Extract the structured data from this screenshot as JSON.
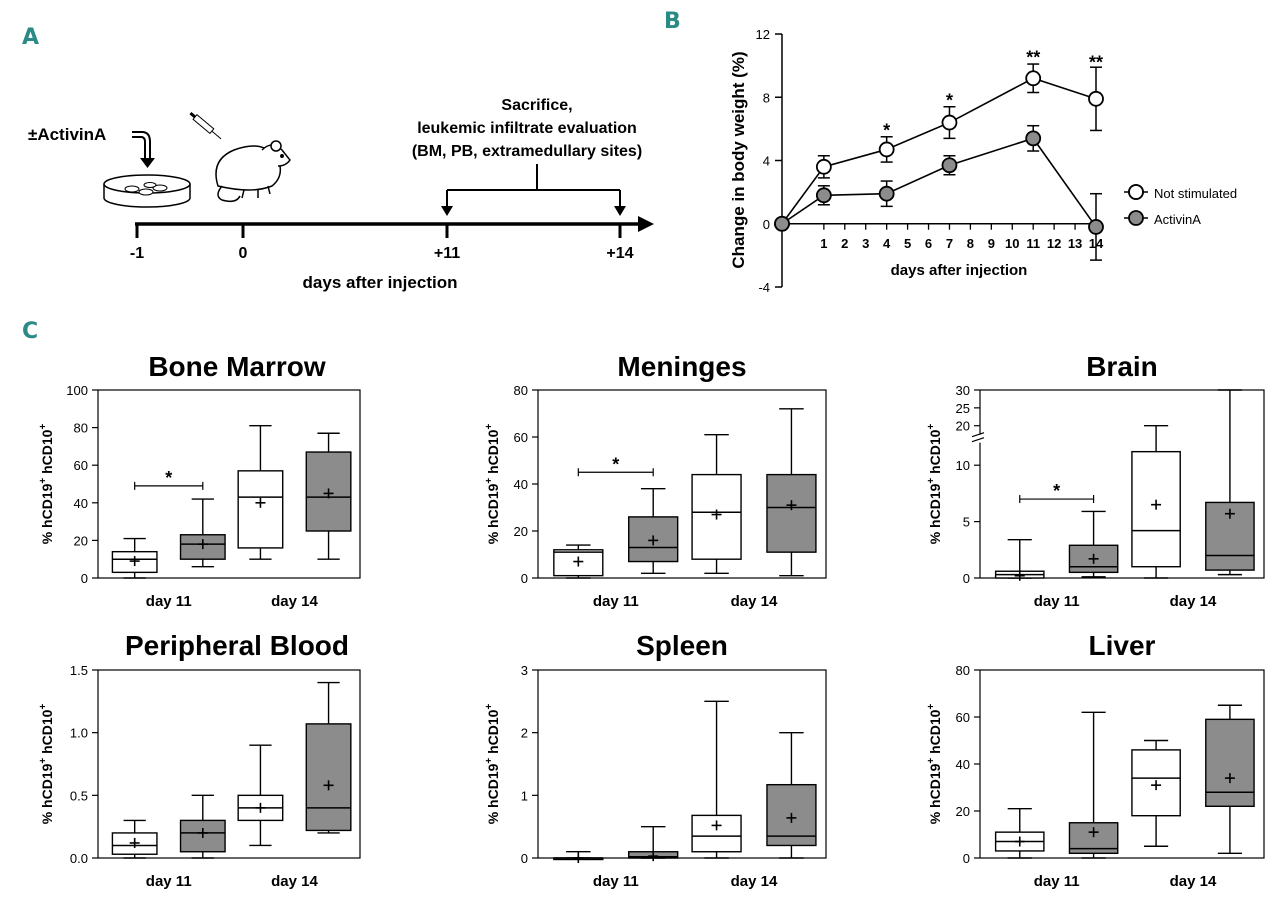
{
  "colors": {
    "panel_letter": "#2a8a86",
    "filled": "#8c8c8c",
    "open": "#ffffff",
    "stroke": "#000000"
  },
  "panelA": {
    "letter": "A",
    "activin_label": "±ActivinA",
    "sacrifice_lines": [
      "Sacrifice,",
      "leukemic infiltrate evaluation",
      "(BM, PB, extramedullary sites)"
    ],
    "timepoints": [
      "-1",
      "0",
      "+11",
      "+14"
    ],
    "axis_label": "days after injection",
    "icons": [
      "culture-dish-icon",
      "mouse-icon",
      "syringe-icon"
    ]
  },
  "panelB": {
    "letter": "B",
    "legend": [
      "Not stimulated",
      "ActivinA"
    ]
  },
  "panelC": {
    "letter": "C"
  },
  "chart_data": [
    {
      "id": "weight",
      "type": "line",
      "title": "",
      "xlabel": "days after injection",
      "ylabel": "Change in body weight (%)",
      "x_ticks": [
        "1",
        "2",
        "3",
        "4",
        "5",
        "6",
        "7",
        "8",
        "9",
        "10",
        "11",
        "12",
        "13",
        "14"
      ],
      "xlim": [
        -1,
        14
      ],
      "ylim": [
        -4,
        12
      ],
      "y_ticks": [
        "-4",
        "0",
        "4",
        "8",
        "12"
      ],
      "series": [
        {
          "name": "Not stimulated",
          "style": "open",
          "x": [
            -1,
            1,
            4,
            7,
            11,
            14
          ],
          "y": [
            0,
            3.6,
            4.7,
            6.4,
            9.2,
            7.9
          ],
          "err": [
            0,
            0.7,
            0.8,
            1.0,
            0.9,
            2.0
          ]
        },
        {
          "name": "ActivinA",
          "style": "filled",
          "x": [
            -1,
            1,
            4,
            7,
            11,
            14
          ],
          "y": [
            0,
            1.8,
            1.9,
            3.7,
            5.4,
            -0.2
          ],
          "err": [
            0,
            0.6,
            0.8,
            0.6,
            0.8,
            2.1
          ]
        }
      ],
      "annotations": [
        {
          "x": 4,
          "y": 5.9,
          "text": "*"
        },
        {
          "x": 7,
          "y": 7.8,
          "text": "*"
        },
        {
          "x": 11,
          "y": 10.5,
          "text": "**"
        },
        {
          "x": 14,
          "y": 10.2,
          "text": "**"
        }
      ]
    },
    {
      "id": "bone-marrow",
      "type": "box",
      "title": "Bone Marrow",
      "ylabel": "% hCD19+ hCD10+",
      "categories": [
        "day 11",
        "day 14"
      ],
      "ylim": [
        0,
        100
      ],
      "y_ticks": [
        "0",
        "20",
        "40",
        "60",
        "80",
        "100"
      ],
      "boxes": [
        {
          "style": "open",
          "whisker_low": 0,
          "q1": 3,
          "median": 10,
          "q3": 14,
          "whisker_high": 21,
          "mean": 9
        },
        {
          "style": "filled",
          "whisker_low": 6,
          "q1": 10,
          "median": 18,
          "q3": 23,
          "whisker_high": 42,
          "mean": 18
        },
        {
          "style": "open",
          "whisker_low": 10,
          "q1": 16,
          "median": 43,
          "q3": 57,
          "whisker_high": 81,
          "mean": 40
        },
        {
          "style": "filled",
          "whisker_low": 10,
          "q1": 25,
          "median": 43,
          "q3": 67,
          "whisker_high": 77,
          "mean": 45
        }
      ],
      "significance": {
        "from": 0,
        "to": 1,
        "y": 49,
        "text": "*"
      }
    },
    {
      "id": "meninges",
      "type": "box",
      "title": "Meninges",
      "ylabel": "% hCD19+ hCD10+",
      "categories": [
        "day 11",
        "day 14"
      ],
      "ylim": [
        0,
        80
      ],
      "y_ticks": [
        "0",
        "20",
        "40",
        "60",
        "80"
      ],
      "boxes": [
        {
          "style": "open",
          "whisker_low": 0,
          "q1": 1,
          "median": 11,
          "q3": 12,
          "whisker_high": 14,
          "mean": 7
        },
        {
          "style": "filled",
          "whisker_low": 2,
          "q1": 7,
          "median": 13,
          "q3": 26,
          "whisker_high": 38,
          "mean": 16
        },
        {
          "style": "open",
          "whisker_low": 2,
          "q1": 8,
          "median": 28,
          "q3": 44,
          "whisker_high": 61,
          "mean": 27
        },
        {
          "style": "filled",
          "whisker_low": 1,
          "q1": 11,
          "median": 30,
          "q3": 44,
          "whisker_high": 72,
          "mean": 31
        }
      ],
      "significance": {
        "from": 0,
        "to": 1,
        "y": 45,
        "text": "*"
      }
    },
    {
      "id": "brain",
      "type": "box",
      "title": "Brain",
      "ylabel": "% hCD19+ hCD10+",
      "categories": [
        "day 11",
        "day 14"
      ],
      "ylim": [
        0,
        30
      ],
      "axis_break": [
        12,
        17.5
      ],
      "y_ticks": [
        "0",
        "5",
        "10",
        "20",
        "25",
        "30"
      ],
      "boxes": [
        {
          "style": "open",
          "whisker_low": 0,
          "q1": 0,
          "median": 0.3,
          "q3": 0.6,
          "whisker_high": 3.4,
          "mean": 0.2
        },
        {
          "style": "filled",
          "whisker_low": 0.1,
          "q1": 0.5,
          "median": 1.0,
          "q3": 2.9,
          "whisker_high": 5.9,
          "mean": 1.7
        },
        {
          "style": "open",
          "whisker_low": 0,
          "q1": 1.0,
          "median": 4.2,
          "q3": 11.2,
          "whisker_high": 20,
          "mean": 6.5
        },
        {
          "style": "filled",
          "whisker_low": 0.3,
          "q1": 0.7,
          "median": 2.0,
          "q3": 6.7,
          "whisker_high": 30,
          "mean": 5.7
        }
      ],
      "significance": {
        "from": 0,
        "to": 1,
        "y": 7,
        "text": "*"
      }
    },
    {
      "id": "peripheral-blood",
      "type": "box",
      "title": "Peripheral Blood",
      "ylabel": "% hCD19+ hCD10+",
      "categories": [
        "day 11",
        "day 14"
      ],
      "ylim": [
        0,
        1.5
      ],
      "y_ticks": [
        "0.0",
        "0.5",
        "1.0",
        "1.5"
      ],
      "boxes": [
        {
          "style": "open",
          "whisker_low": 0,
          "q1": 0.03,
          "median": 0.1,
          "q3": 0.2,
          "whisker_high": 0.3,
          "mean": 0.12
        },
        {
          "style": "filled",
          "whisker_low": 0,
          "q1": 0.05,
          "median": 0.2,
          "q3": 0.3,
          "whisker_high": 0.5,
          "mean": 0.2
        },
        {
          "style": "open",
          "whisker_low": 0.1,
          "q1": 0.3,
          "median": 0.4,
          "q3": 0.5,
          "whisker_high": 0.9,
          "mean": 0.4
        },
        {
          "style": "filled",
          "whisker_low": 0.2,
          "q1": 0.22,
          "median": 0.4,
          "q3": 1.07,
          "whisker_high": 1.4,
          "mean": 0.58
        }
      ]
    },
    {
      "id": "spleen",
      "type": "box",
      "title": "Spleen",
      "ylabel": "% hCD19+ hCD10+",
      "categories": [
        "day 11",
        "day 14"
      ],
      "ylim": [
        0,
        3
      ],
      "y_ticks": [
        "0",
        "1",
        "2",
        "3"
      ],
      "boxes": [
        {
          "style": "open",
          "whisker_low": 0,
          "q1": 0,
          "median": 0,
          "q3": 0,
          "whisker_high": 0.1,
          "mean": 0
        },
        {
          "style": "filled",
          "whisker_low": 0,
          "q1": 0,
          "median": 0.02,
          "q3": 0.1,
          "whisker_high": 0.5,
          "mean": 0.03
        },
        {
          "style": "open",
          "whisker_low": 0,
          "q1": 0.1,
          "median": 0.35,
          "q3": 0.68,
          "whisker_high": 2.5,
          "mean": 0.52
        },
        {
          "style": "filled",
          "whisker_low": 0,
          "q1": 0.2,
          "median": 0.35,
          "q3": 1.17,
          "whisker_high": 2.0,
          "mean": 0.64
        }
      ]
    },
    {
      "id": "liver",
      "type": "box",
      "title": "Liver",
      "ylabel": "% hCD19+ hCD10+",
      "categories": [
        "day 11",
        "day 14"
      ],
      "ylim": [
        0,
        80
      ],
      "y_ticks": [
        "0",
        "20",
        "40",
        "60",
        "80"
      ],
      "boxes": [
        {
          "style": "open",
          "whisker_low": 0,
          "q1": 3,
          "median": 7,
          "q3": 11,
          "whisker_high": 21,
          "mean": 7
        },
        {
          "style": "filled",
          "whisker_low": 0,
          "q1": 2,
          "median": 4,
          "q3": 15,
          "whisker_high": 62,
          "mean": 11
        },
        {
          "style": "open",
          "whisker_low": 5,
          "q1": 18,
          "median": 34,
          "q3": 46,
          "whisker_high": 50,
          "mean": 31
        },
        {
          "style": "filled",
          "whisker_low": 2,
          "q1": 22,
          "median": 28,
          "q3": 59,
          "whisker_high": 65,
          "mean": 34
        }
      ]
    }
  ]
}
